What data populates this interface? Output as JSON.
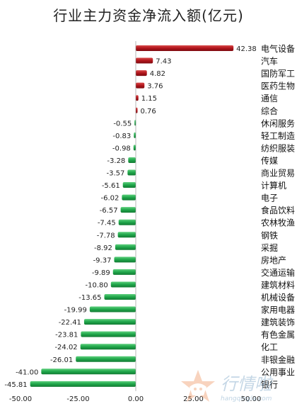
{
  "chart_data": {
    "type": "bar",
    "orientation": "horizontal",
    "title": "行业主力资金净流入额(亿元)",
    "xlabel": "",
    "ylabel": "",
    "xlim": [
      -50,
      50
    ],
    "xticks": [
      -50,
      -25,
      0,
      25,
      50
    ],
    "xtick_labels": [
      "-50.00",
      "-25.00",
      "0.00",
      "25.00",
      "50.00"
    ],
    "grid": false,
    "legend": "none",
    "categories": [
      "电气设备",
      "汽车",
      "国防军工",
      "医药生物",
      "通信",
      "综合",
      "休闲服务",
      "轻工制造",
      "纺织服装",
      "传媒",
      "商业贸易",
      "计算机",
      "电子",
      "食品饮料",
      "农林牧渔",
      "钢铁",
      "采掘",
      "房地产",
      "交通运输",
      "建筑材料",
      "机械设备",
      "家用电器",
      "建筑装饰",
      "有色金属",
      "化工",
      "非银金融",
      "公用事业",
      "银行"
    ],
    "values": [
      42.38,
      7.43,
      4.82,
      3.76,
      1.15,
      0.76,
      -0.55,
      -0.83,
      -0.98,
      -3.28,
      -3.57,
      -5.61,
      -6.02,
      -6.57,
      -7.45,
      -7.78,
      -8.92,
      -9.37,
      -9.89,
      -10.8,
      -13.65,
      -19.99,
      -22.41,
      -23.81,
      -24.02,
      -26.01,
      -41.0,
      -45.81
    ],
    "value_labels": [
      "42.38",
      "7.43",
      "4.82",
      "3.76",
      "1.15",
      "0.76",
      "-0.55",
      "-0.83",
      "-0.98",
      "-3.28",
      "-3.57",
      "-5.61",
      "-6.02",
      "-6.57",
      "-7.45",
      "-7.78",
      "-8.92",
      "-9.37",
      "-9.89",
      "-10.80",
      "-13.65",
      "-19.99",
      "-22.41",
      "-23.81",
      "-24.02",
      "-26.01",
      "-41.00",
      "-45.81"
    ],
    "colors": {
      "positive": "#b0141b",
      "negative": "#1fa64a"
    }
  },
  "watermark": {
    "brand": "行情啦",
    "url": "hangqingla.com",
    "icon": "bull-logo-icon",
    "color": "#7fa8c8"
  }
}
